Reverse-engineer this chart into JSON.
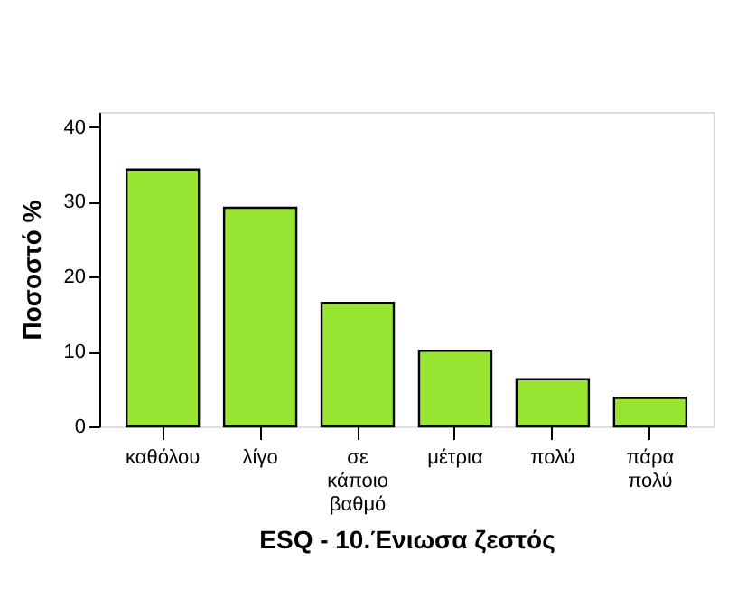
{
  "chart_data": {
    "type": "bar",
    "categories": [
      "καθόλου",
      "λίγο",
      "σε κάποιο βαθμό",
      "μέτρια",
      "πολύ",
      "πάρα πολύ"
    ],
    "values": [
      34.3,
      29.2,
      16.5,
      10.1,
      6.3,
      3.8
    ],
    "color": "#99e632",
    "xlabel": "ESQ - 10.Ένιωσα  ζεστός",
    "ylabel": "Ποσοστό %",
    "ylim": [
      0,
      42
    ],
    "yticks": [
      0,
      10,
      20,
      30,
      40
    ],
    "grid": false
  }
}
